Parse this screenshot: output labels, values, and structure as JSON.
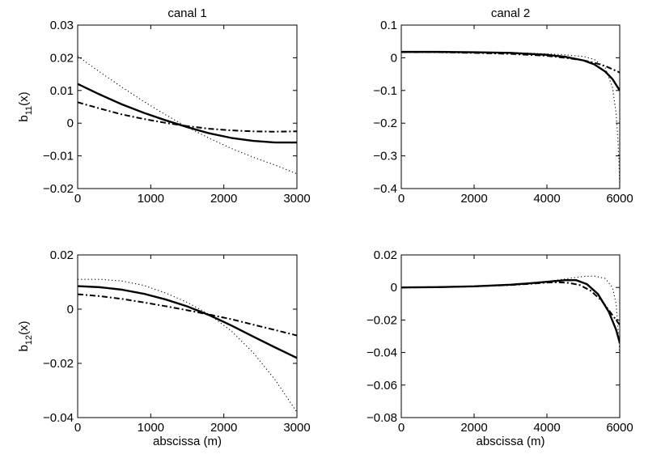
{
  "chart_data": [
    {
      "type": "line",
      "title": "canal 1",
      "xlabel": "",
      "ylabel": "b_11(x)",
      "xlim": [
        0,
        3000
      ],
      "ylim": [
        -0.02,
        0.03
      ],
      "xticks": [
        0,
        1000,
        2000,
        3000
      ],
      "yticks": [
        -0.02,
        -0.01,
        0,
        0.01,
        0.02,
        0.03
      ],
      "xtick_labels": [
        "0",
        "1000",
        "2000",
        "3000"
      ],
      "ytick_labels": [
        "−0.02",
        "−0.01",
        "0",
        "0.01",
        "0.02",
        "0.03"
      ],
      "grid": false,
      "series": [
        {
          "style": "solid",
          "x": [
            0,
            300,
            600,
            900,
            1200,
            1500,
            1800,
            2100,
            2400,
            2700,
            3000
          ],
          "y": [
            0.012,
            0.0088,
            0.0058,
            0.0032,
            0.0009,
            -0.0012,
            -0.0031,
            -0.0045,
            -0.0054,
            -0.0059,
            -0.0059
          ]
        },
        {
          "style": "dotted",
          "x": [
            0,
            300,
            600,
            900,
            1200,
            1500,
            1800,
            2100,
            2400,
            2700,
            3000
          ],
          "y": [
            0.0205,
            0.0157,
            0.0111,
            0.0067,
            0.0026,
            -0.0012,
            -0.0046,
            -0.0077,
            -0.0104,
            -0.0128,
            -0.0155
          ]
        },
        {
          "style": "dashdot",
          "x": [
            0,
            300,
            600,
            900,
            1200,
            1500,
            1800,
            2100,
            2400,
            2700,
            3000
          ],
          "y": [
            0.0064,
            0.0045,
            0.0027,
            0.0013,
            0.0001,
            -0.0009,
            -0.0017,
            -0.0022,
            -0.0025,
            -0.0026,
            -0.0025
          ]
        }
      ]
    },
    {
      "type": "line",
      "title": "canal 2",
      "xlabel": "",
      "ylabel": "",
      "xlim": [
        0,
        6000
      ],
      "ylim": [
        -0.4,
        0.1
      ],
      "xticks": [
        0,
        2000,
        4000,
        6000
      ],
      "yticks": [
        -0.4,
        -0.3,
        -0.2,
        -0.1,
        0,
        0.1
      ],
      "xtick_labels": [
        "0",
        "2000",
        "4000",
        "6000"
      ],
      "ytick_labels": [
        "−0.4",
        "−0.3",
        "−0.2",
        "−0.1",
        "0",
        "0.1"
      ],
      "grid": false,
      "series": [
        {
          "style": "solid",
          "x": [
            0,
            1000,
            2000,
            3000,
            4000,
            4500,
            5000,
            5300,
            5600,
            5800,
            6000
          ],
          "y": [
            0.018,
            0.018,
            0.017,
            0.015,
            0.009,
            0.003,
            -0.008,
            -0.02,
            -0.042,
            -0.065,
            -0.1
          ]
        },
        {
          "style": "dotted",
          "x": [
            0,
            1000,
            2000,
            3000,
            4000,
            4500,
            5000,
            5300,
            5600,
            5800,
            5900,
            5950,
            5980,
            6000
          ],
          "y": [
            0.018,
            0.018,
            0.017,
            0.016,
            0.012,
            0.009,
            0.004,
            -0.005,
            -0.03,
            -0.09,
            -0.17,
            -0.25,
            -0.32,
            -0.4
          ]
        },
        {
          "style": "dashdot",
          "x": [
            0,
            1000,
            2000,
            3000,
            4000,
            4500,
            5000,
            5300,
            5600,
            5800,
            6000
          ],
          "y": [
            0.017,
            0.017,
            0.015,
            0.012,
            0.006,
            0.0,
            -0.008,
            -0.015,
            -0.025,
            -0.035,
            -0.045
          ]
        }
      ]
    },
    {
      "type": "line",
      "title": "",
      "xlabel": "abscissa (m)",
      "ylabel": "b_12(x)",
      "xlim": [
        0,
        3000
      ],
      "ylim": [
        -0.04,
        0.02
      ],
      "xticks": [
        0,
        1000,
        2000,
        3000
      ],
      "yticks": [
        -0.04,
        -0.02,
        0,
        0.02
      ],
      "xtick_labels": [
        "0",
        "1000",
        "2000",
        "3000"
      ],
      "ytick_labels": [
        "−0.04",
        "−0.02",
        "0",
        "0.02"
      ],
      "grid": false,
      "series": [
        {
          "style": "solid",
          "x": [
            0,
            300,
            600,
            900,
            1200,
            1500,
            1800,
            2100,
            2400,
            2700,
            3000
          ],
          "y": [
            0.0085,
            0.0081,
            0.0072,
            0.0057,
            0.0036,
            0.001,
            -0.0022,
            -0.006,
            -0.0101,
            -0.0141,
            -0.018
          ]
        },
        {
          "style": "dotted",
          "x": [
            0,
            300,
            600,
            900,
            1200,
            1500,
            1800,
            2100,
            2400,
            2700,
            3000
          ],
          "y": [
            0.011,
            0.011,
            0.0104,
            0.0088,
            0.006,
            0.0025,
            -0.002,
            -0.008,
            -0.016,
            -0.026,
            -0.038
          ]
        },
        {
          "style": "dashdot",
          "x": [
            0,
            300,
            600,
            900,
            1200,
            1500,
            1800,
            2100,
            2400,
            2700,
            3000
          ],
          "y": [
            0.0055,
            0.0048,
            0.0038,
            0.0025,
            0.0011,
            -0.0004,
            -0.002,
            -0.0037,
            -0.0057,
            -0.0077,
            -0.0097
          ]
        }
      ]
    },
    {
      "type": "line",
      "title": "",
      "xlabel": "abscissa (m)",
      "ylabel": "",
      "xlim": [
        0,
        6000
      ],
      "ylim": [
        -0.08,
        0.02
      ],
      "xticks": [
        0,
        2000,
        4000,
        6000
      ],
      "yticks": [
        -0.08,
        -0.06,
        -0.04,
        -0.02,
        0,
        0.02
      ],
      "xtick_labels": [
        "0",
        "2000",
        "4000",
        "6000"
      ],
      "ytick_labels": [
        "−0.08",
        "−0.06",
        "−0.04",
        "−0.02",
        "0",
        "0.02"
      ],
      "grid": false,
      "series": [
        {
          "style": "solid",
          "x": [
            0,
            1000,
            2000,
            3000,
            3500,
            4000,
            4500,
            4800,
            5100,
            5400,
            5700,
            5900,
            6000
          ],
          "y": [
            0.0,
            0.0002,
            0.0007,
            0.0017,
            0.0025,
            0.0035,
            0.0045,
            0.0045,
            0.002,
            -0.004,
            -0.015,
            -0.026,
            -0.034
          ]
        },
        {
          "style": "dotted",
          "x": [
            0,
            1000,
            2000,
            3000,
            3500,
            4000,
            4500,
            5000,
            5300,
            5600,
            5800,
            5900,
            5970,
            6000
          ],
          "y": [
            0.0,
            0.0002,
            0.0007,
            0.0017,
            0.0027,
            0.0037,
            0.0052,
            0.0068,
            0.007,
            0.0055,
            0.0,
            -0.01,
            -0.03,
            -0.04
          ]
        },
        {
          "style": "dashdot",
          "x": [
            0,
            1000,
            2000,
            3000,
            3500,
            4000,
            4300,
            4600,
            4900,
            5200,
            5500,
            5800,
            6000
          ],
          "y": [
            0.0,
            0.0002,
            0.0007,
            0.0015,
            0.0022,
            0.003,
            0.0032,
            0.0028,
            0.0015,
            -0.002,
            -0.008,
            -0.017,
            -0.023
          ]
        }
      ]
    }
  ]
}
